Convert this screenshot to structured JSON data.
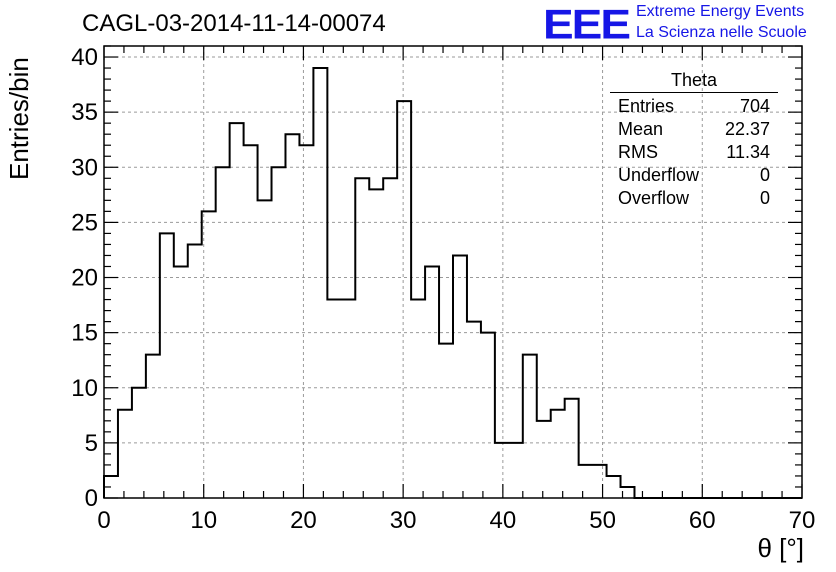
{
  "title": "CAGL-03-2014-11-14-00074",
  "logo": {
    "mark": "EEE",
    "line1": "Extreme Energy Events",
    "line2": "La Scienza nelle Scuole",
    "color": "#1616e6"
  },
  "statbox": {
    "title": "Theta",
    "rows": [
      {
        "label": "Entries",
        "value": "704"
      },
      {
        "label": "Mean",
        "value": "22.37"
      },
      {
        "label": "RMS",
        "value": "11.34"
      },
      {
        "label": "Underflow",
        "value": "0"
      },
      {
        "label": "Overflow",
        "value": "0"
      }
    ]
  },
  "chart_data": {
    "type": "bar",
    "style": "step-histogram",
    "title": "CAGL-03-2014-11-14-00074",
    "xlabel": "θ [°]",
    "ylabel": "Entries/bin",
    "xlim": [
      0,
      70
    ],
    "ylim": [
      0,
      41
    ],
    "bin_width": 1.4,
    "bin_edges_start": 0,
    "values": [
      2,
      8,
      10,
      13,
      24,
      21,
      23,
      26,
      30,
      34,
      32,
      27,
      30,
      33,
      32,
      39,
      18,
      18,
      29,
      28,
      29,
      36,
      18,
      21,
      14,
      22,
      16,
      15,
      5,
      5,
      13,
      7,
      8,
      9,
      3,
      3,
      2,
      1,
      0,
      0,
      0,
      0,
      0,
      0,
      0,
      0,
      0,
      0,
      0,
      0
    ],
    "x_ticks": [
      0,
      10,
      20,
      30,
      40,
      50,
      60,
      70
    ],
    "y_ticks": [
      0,
      5,
      10,
      15,
      20,
      25,
      30,
      35,
      40
    ],
    "grid": true,
    "line_color": "#000000",
    "grid_color": "#9a9a9a"
  }
}
